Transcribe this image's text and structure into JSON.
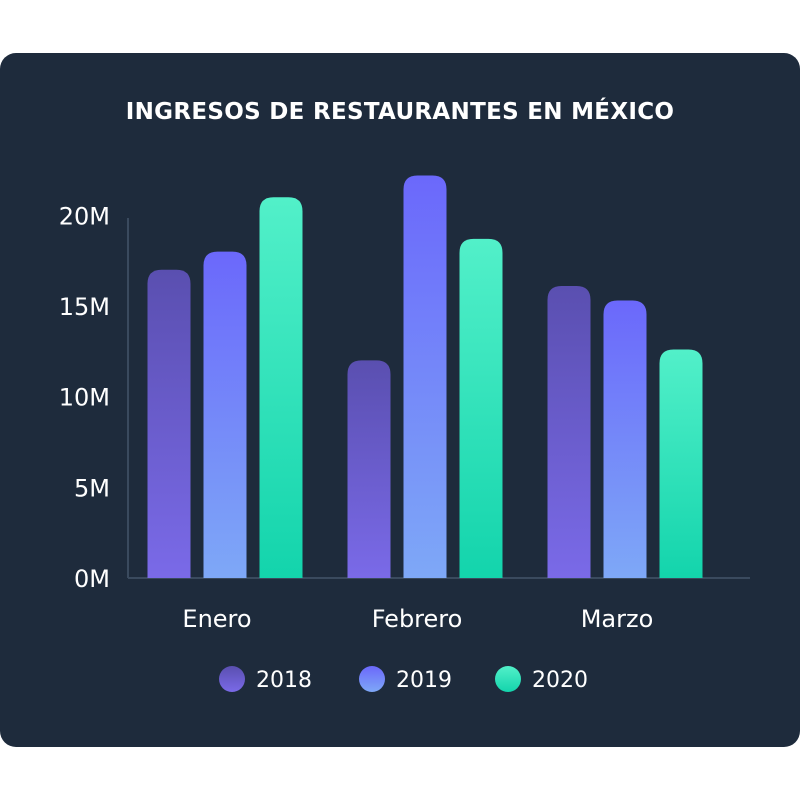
{
  "chart_data": {
    "type": "bar",
    "title": "INGRESOS DE RESTAURANTES EN MÉXICO",
    "categories": [
      "Enero",
      "Febrero",
      "Marzo"
    ],
    "series": [
      {
        "name": "2018",
        "values": [
          17,
          12,
          16.1
        ]
      },
      {
        "name": "2019",
        "values": [
          18,
          22.2,
          15.3
        ]
      },
      {
        "name": "2020",
        "values": [
          21,
          18.7,
          12.6
        ]
      }
    ],
    "yticks": [
      "0M",
      "5M",
      "10M",
      "15M",
      "20M"
    ],
    "ytick_values": [
      0,
      5,
      10,
      15,
      20
    ],
    "ylim": [
      0,
      22.5
    ],
    "legend": "bottom",
    "colors": {
      "2018": {
        "top": "#5a4fb0",
        "bottom": "#7a6ae8"
      },
      "2019": {
        "top": "#6b68fb",
        "bottom": "#7ea8f7"
      },
      "2020": {
        "top": "#52f0c9",
        "bottom": "#13d4ac"
      },
      "background": "#1e2b3c",
      "axis": "#3a4a5e"
    }
  }
}
